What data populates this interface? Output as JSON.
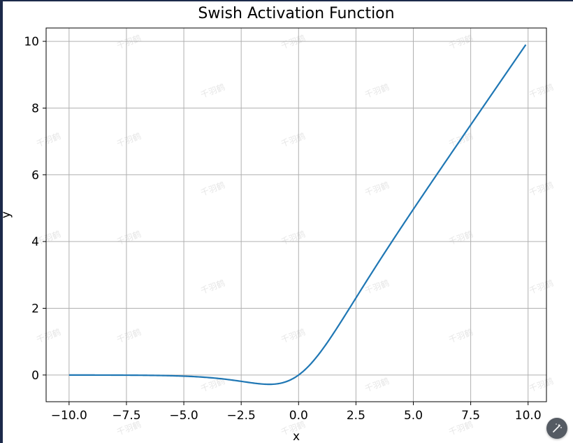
{
  "chart_data": {
    "type": "line",
    "title": "Swish Activation Function",
    "xlabel": "x",
    "ylabel": "y",
    "xlim": [
      -11.0,
      10.8
    ],
    "ylim": [
      -0.8,
      10.4
    ],
    "xticks": [
      -10.0,
      -7.5,
      -5.0,
      -2.5,
      0.0,
      2.5,
      5.0,
      7.5,
      10.0
    ],
    "xtick_labels": [
      "−10.0",
      "−7.5",
      "−5.0",
      "−2.5",
      "0.0",
      "2.5",
      "5.0",
      "7.5",
      "10.0"
    ],
    "yticks": [
      0,
      2,
      4,
      6,
      8,
      10
    ],
    "ytick_labels": [
      "0",
      "2",
      "4",
      "6",
      "8",
      "10"
    ],
    "grid": true,
    "series": [
      {
        "color": "#1f77b4",
        "function": "x / (1 + exp(-x))",
        "x_range": [
          -10.0,
          9.9
        ]
      }
    ]
  },
  "watermark_text": "千羽鹤",
  "fab": {
    "icon": "wand-icon"
  }
}
